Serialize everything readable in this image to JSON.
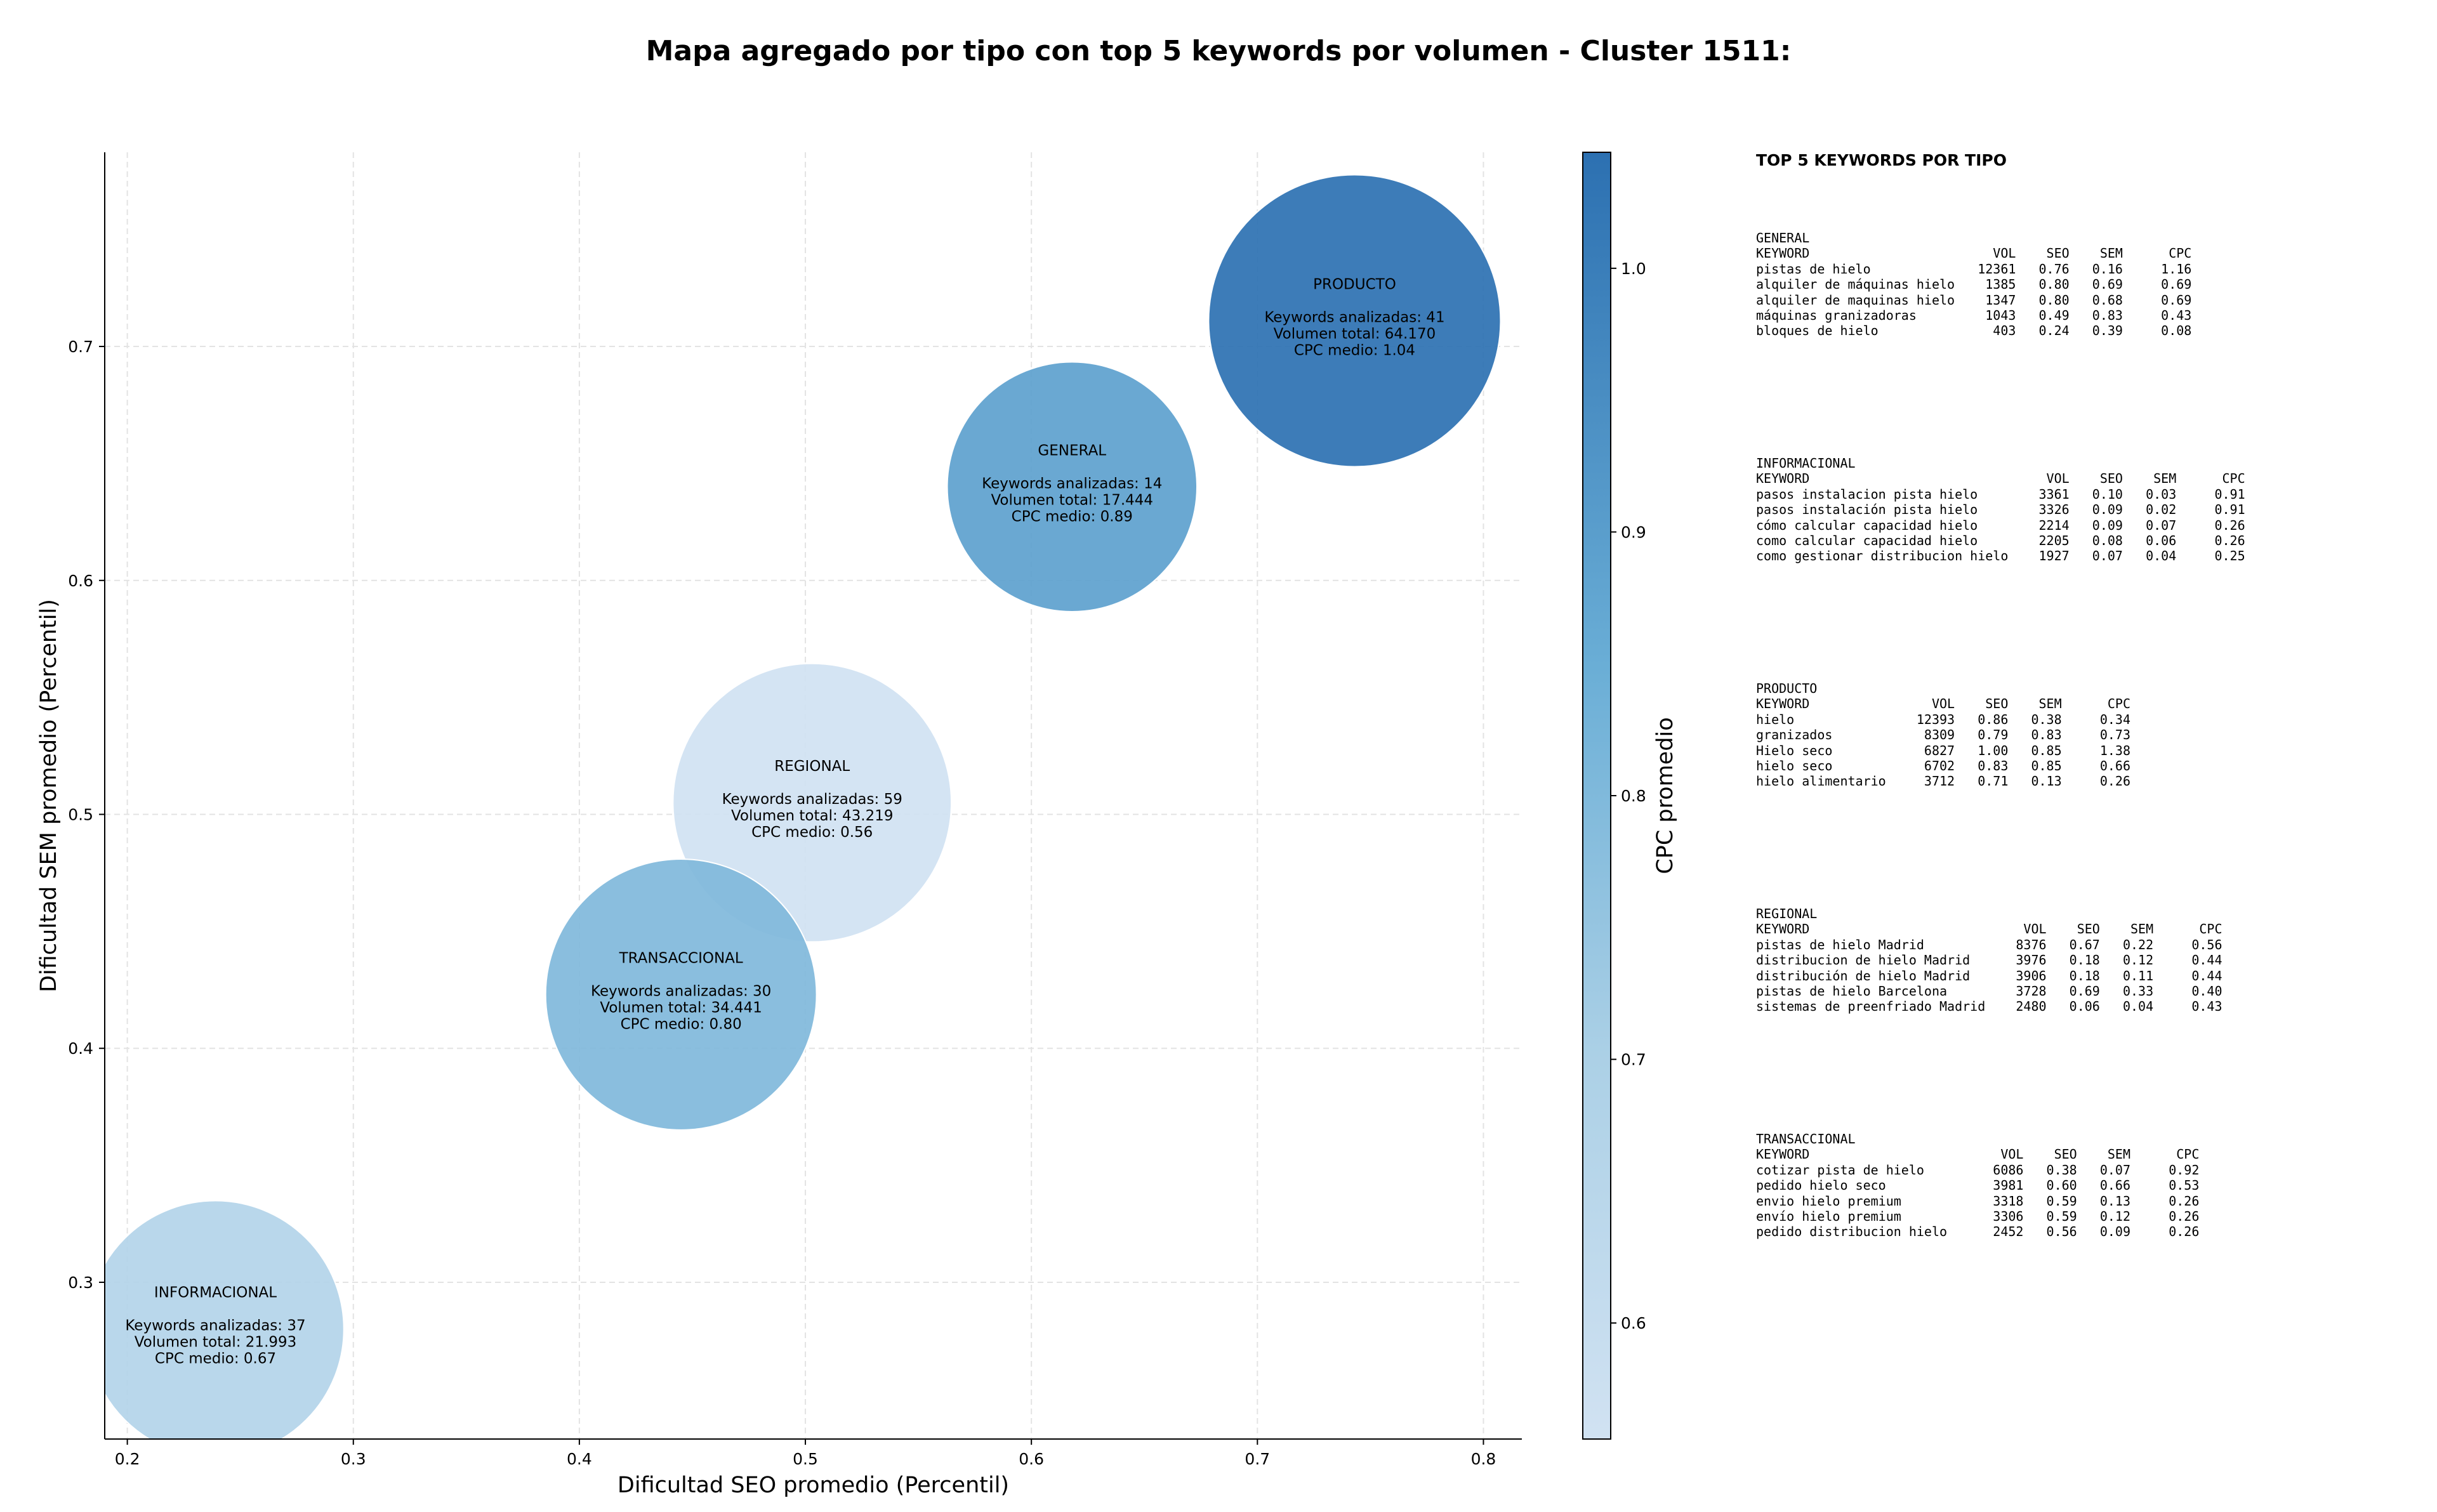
{
  "title": "Mapa agregado por tipo con top 5 keywords por volumen - Cluster 1511:",
  "chart_data": {
    "type": "scatter",
    "style": "bubble",
    "xlabel": "Dificultad SEO promedio (Percentil)",
    "ylabel": "Dificultad SEM promedio (Percentil)",
    "xlim": [
      0.19,
      0.817
    ],
    "ylim": [
      0.233,
      0.783
    ],
    "xticks": [
      "0.2",
      "0.3",
      "0.4",
      "0.5",
      "0.6",
      "0.7",
      "0.8"
    ],
    "yticks": [
      "0.3",
      "0.4",
      "0.5",
      "0.6",
      "0.7"
    ],
    "grid": true,
    "colorbar": {
      "label": "CPC promedio",
      "range": [
        0.556,
        1.044
      ],
      "ticks": [
        "0.6",
        "0.7",
        "0.8",
        "0.9",
        "1.0"
      ],
      "colormap": "Blues"
    },
    "points": [
      {
        "name": "PRODUCTO",
        "x": 0.743,
        "y": 0.711,
        "keywords": 41,
        "volume": 64170,
        "lines": [
          "Keywords analizadas: 41",
          "Volumen total: 64.170",
          "CPC medio: 1.04"
        ],
        "cpc": 1.04
      },
      {
        "name": "GENERAL",
        "x": 0.618,
        "y": 0.64,
        "keywords": 14,
        "volume": 17444,
        "lines": [
          "Keywords analizadas: 14",
          "Volumen total: 17.444",
          "CPC medio: 0.89"
        ],
        "cpc": 0.89
      },
      {
        "name": "REGIONAL",
        "x": 0.503,
        "y": 0.505,
        "keywords": 59,
        "volume": 43219,
        "lines": [
          "Keywords analizadas: 59",
          "Volumen total: 43.219",
          "CPC medio: 0.56"
        ],
        "cpc": 0.56
      },
      {
        "name": "TRANSACCIONAL",
        "x": 0.445,
        "y": 0.423,
        "keywords": 30,
        "volume": 34441,
        "lines": [
          "Keywords analizadas: 30",
          "Volumen total: 34.441",
          "CPC medio: 0.80"
        ],
        "cpc": 0.8
      },
      {
        "name": "INFORMACIONAL",
        "x": 0.239,
        "y": 0.28,
        "keywords": 37,
        "volume": 21993,
        "lines": [
          "Keywords analizadas: 37",
          "Volumen total: 21.993",
          "CPC medio: 0.67"
        ],
        "cpc": 0.67
      }
    ]
  },
  "panel": {
    "title": "TOP 5 KEYWORDS POR TIPO",
    "blocks": [
      {
        "name": "GENERAL",
        "header": "KEYWORD                        VOL    SEO    SEM      CPC",
        "rows": [
          "pistas de hielo              12361   0.76   0.16     1.16",
          "alquiler de máquinas hielo    1385   0.80   0.69     0.69",
          "alquiler de maquinas hielo    1347   0.80   0.68     0.69",
          "máquinas granizadoras         1043   0.49   0.83     0.43",
          "bloques de hielo               403   0.24   0.39     0.08"
        ]
      },
      {
        "name": "INFORMACIONAL",
        "header": "KEYWORD                               VOL    SEO    SEM      CPC",
        "rows": [
          "pasos instalacion pista hielo        3361   0.10   0.03     0.91",
          "pasos instalación pista hielo        3326   0.09   0.02     0.91",
          "cómo calcular capacidad hielo        2214   0.09   0.07     0.26",
          "como calcular capacidad hielo        2205   0.08   0.06     0.26",
          "como gestionar distribucion hielo    1927   0.07   0.04     0.25"
        ]
      },
      {
        "name": "PRODUCTO",
        "header": "KEYWORD                VOL    SEO    SEM      CPC",
        "rows": [
          "hielo                12393   0.86   0.38     0.34",
          "granizados            8309   0.79   0.83     0.73",
          "Hielo seco            6827   1.00   0.85     1.38",
          "hielo seco            6702   0.83   0.85     0.66",
          "hielo alimentario     3712   0.71   0.13     0.26"
        ]
      },
      {
        "name": "REGIONAL",
        "header": "KEYWORD                            VOL    SEO    SEM      CPC",
        "rows": [
          "pistas de hielo Madrid            8376   0.67   0.22     0.56",
          "distribucion de hielo Madrid      3976   0.18   0.12     0.44",
          "distribución de hielo Madrid      3906   0.18   0.11     0.44",
          "pistas de hielo Barcelona         3728   0.69   0.33     0.40",
          "sistemas de preenfriado Madrid    2480   0.06   0.04     0.43"
        ]
      },
      {
        "name": "TRANSACCIONAL",
        "header": "KEYWORD                         VOL    SEO    SEM      CPC",
        "rows": [
          "cotizar pista de hielo         6086   0.38   0.07     0.92",
          "pedido hielo seco              3981   0.60   0.66     0.53",
          "envio hielo premium            3318   0.59   0.13     0.26",
          "envío hielo premium            3306   0.59   0.12     0.26",
          "pedido distribucion hielo      2452   0.56   0.09     0.26"
        ]
      }
    ]
  }
}
